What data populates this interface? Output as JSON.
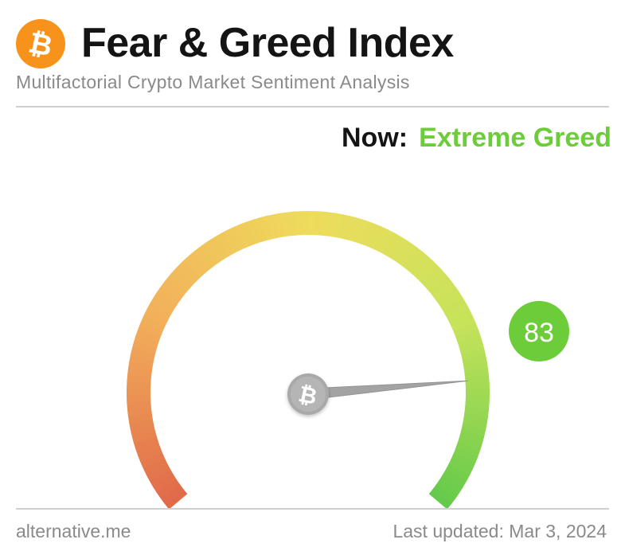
{
  "header": {
    "title": "Fear & Greed Index",
    "subtitle": "Multifactorial Crypto Market Sentiment Analysis",
    "logo_icon": "bitcoin-icon"
  },
  "status": {
    "now_label": "Now:",
    "classification": "Extreme Greed",
    "classification_color": "#6dcc3a"
  },
  "gauge": {
    "value": 83,
    "min": 0,
    "max": 100,
    "badge_color": "#6dcc3a",
    "gradient_colors": [
      "#e06a4a",
      "#f2b05a",
      "#eedc5c",
      "#c6e35a",
      "#62c94a"
    ],
    "center_icon": "bitcoin-icon"
  },
  "footer": {
    "source": "alternative.me",
    "last_updated": "Last updated: Mar 3, 2024"
  },
  "colors": {
    "bitcoin_orange": "#f7931a",
    "title_text": "#141414",
    "muted_text": "#8a8a8a"
  }
}
